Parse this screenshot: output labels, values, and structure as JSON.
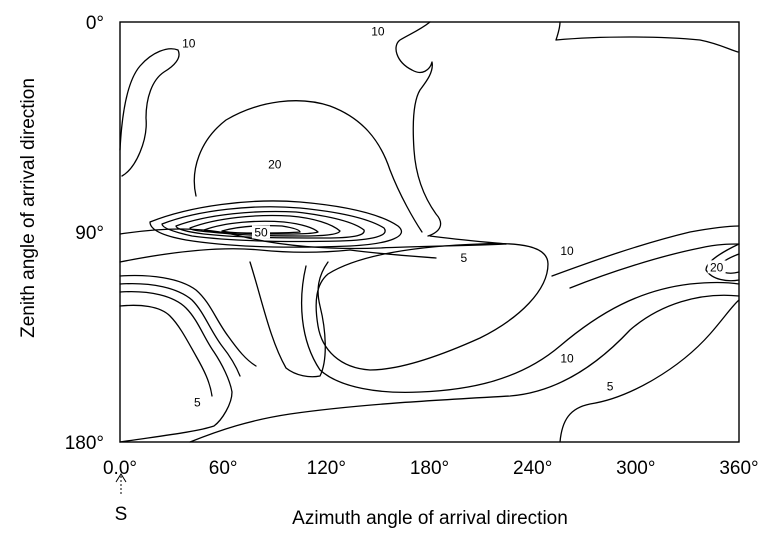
{
  "chart_data": {
    "type": "contour",
    "xlabel": "Azimuth angle of arrival direction",
    "ylabel": "Zenith angle of arrival direction",
    "x_ticks": [
      "0.0°",
      "60°",
      "120°",
      "180°",
      "240°",
      "300°",
      "360°"
    ],
    "y_ticks": [
      "0°",
      "90°",
      "180°"
    ],
    "xlim": [
      0,
      360
    ],
    "ylim": [
      0,
      180
    ],
    "origin_marker": "S",
    "contour_levels": [
      5,
      10,
      20,
      50
    ],
    "contour_labels": [
      {
        "text": "10",
        "az": 40,
        "zen": 10
      },
      {
        "text": "10",
        "az": 150,
        "zen": 5
      },
      {
        "text": "20",
        "az": 90,
        "zen": 62
      },
      {
        "text": "50",
        "az": 82,
        "zen": 91
      },
      {
        "text": "5",
        "az": 200,
        "zen": 102
      },
      {
        "text": "10",
        "az": 260,
        "zen": 99
      },
      {
        "text": "20",
        "az": 347,
        "zen": 106
      },
      {
        "text": "10",
        "az": 260,
        "zen": 145
      },
      {
        "text": "5",
        "az": 285,
        "zen": 157
      },
      {
        "text": "5",
        "az": 45,
        "zen": 164
      }
    ]
  }
}
